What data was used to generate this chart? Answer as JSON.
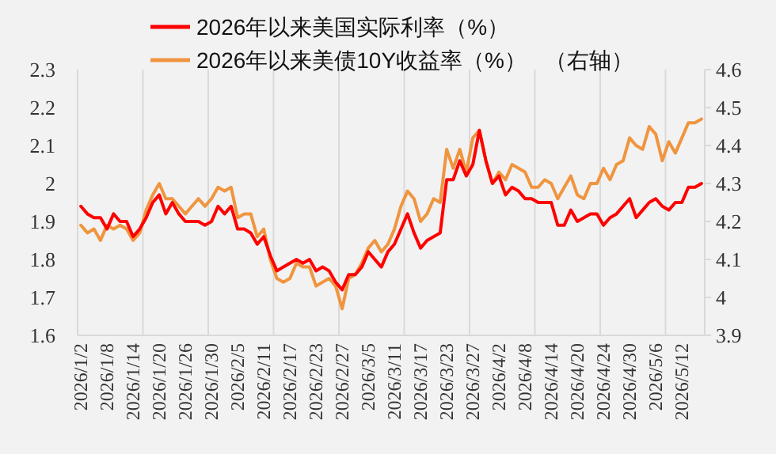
{
  "chart_data": {
    "type": "line",
    "categories": [
      "2026/1/2",
      null,
      null,
      null,
      "2026/1/8",
      null,
      null,
      null,
      "2026/1/14",
      null,
      null,
      null,
      "2026/1/20",
      null,
      null,
      null,
      "2026/1/26",
      null,
      null,
      null,
      "2026/1/30",
      null,
      null,
      null,
      "2026/2/5",
      null,
      null,
      null,
      "2026/2/11",
      null,
      null,
      null,
      "2026/2/17",
      null,
      null,
      null,
      "2026/2/23",
      null,
      null,
      null,
      "2026/2/27",
      null,
      null,
      null,
      "2026/3/5",
      null,
      null,
      null,
      "2026/3/11",
      null,
      null,
      null,
      "2026/3/17",
      null,
      null,
      null,
      "2026/3/23",
      null,
      null,
      null,
      "2026/3/27",
      null,
      null,
      null,
      "2026/4/2",
      null,
      null,
      null,
      "2026/4/8",
      null,
      null,
      null,
      "2026/4/14",
      null,
      null,
      null,
      "2026/4/20",
      null,
      null,
      null,
      "2026/4/24",
      null,
      null,
      null,
      "2026/4/30",
      null,
      null,
      null,
      "2026/5/6",
      null,
      null,
      null,
      "2026/5/12",
      null,
      null,
      null
    ],
    "series": [
      {
        "name": "2026年以来美国实际利率（%）",
        "color": "#ff0000",
        "values": [
          1.94,
          1.92,
          1.91,
          1.91,
          1.88,
          1.92,
          1.9,
          1.9,
          1.86,
          1.88,
          1.91,
          1.95,
          1.97,
          1.92,
          1.95,
          1.92,
          1.9,
          1.9,
          1.9,
          1.89,
          1.9,
          1.94,
          1.92,
          1.94,
          1.88,
          1.88,
          1.87,
          1.84,
          1.86,
          1.81,
          1.77,
          1.78,
          1.79,
          1.8,
          1.79,
          1.8,
          1.77,
          1.78,
          1.77,
          1.74,
          1.72,
          1.76,
          1.76,
          1.78,
          1.82,
          1.8,
          1.78,
          1.82,
          1.84,
          1.88,
          1.92,
          1.87,
          1.83,
          1.85,
          1.86,
          1.87,
          2.01,
          2.01,
          2.06,
          2.02,
          2.05,
          2.14,
          2.06,
          2.0,
          2.02,
          1.97,
          1.99,
          1.98,
          1.96,
          1.96,
          1.95,
          1.95,
          1.95,
          1.89,
          1.89,
          1.93,
          1.9,
          1.91,
          1.92,
          1.92,
          1.89,
          1.91,
          1.92,
          1.94,
          1.96,
          1.91,
          1.93,
          1.95,
          1.96,
          1.94,
          1.93,
          1.95,
          1.95,
          1.99,
          1.99,
          2.0
        ]
      },
      {
        "name": "2026年以来美债10Y收益率（%）   （右轴）",
        "color": "#f0953f",
        "axis": "y2",
        "values": [
          4.19,
          4.17,
          4.18,
          4.15,
          4.19,
          4.18,
          4.19,
          4.18,
          4.15,
          4.17,
          4.23,
          4.27,
          4.3,
          4.26,
          4.26,
          4.24,
          4.22,
          4.24,
          4.26,
          4.24,
          4.26,
          4.29,
          4.28,
          4.29,
          4.21,
          4.22,
          4.22,
          4.16,
          4.18,
          4.1,
          4.05,
          4.04,
          4.05,
          4.09,
          4.08,
          4.08,
          4.03,
          4.04,
          4.05,
          4.03,
          3.97,
          4.05,
          4.06,
          4.09,
          4.13,
          4.15,
          4.12,
          4.14,
          4.18,
          4.24,
          4.28,
          4.26,
          4.2,
          4.22,
          4.26,
          4.25,
          4.39,
          4.34,
          4.39,
          4.33,
          4.42,
          4.44,
          4.36,
          4.3,
          4.33,
          4.31,
          4.35,
          4.34,
          4.33,
          4.29,
          4.29,
          4.31,
          4.3,
          4.26,
          4.29,
          4.32,
          4.27,
          4.26,
          4.3,
          4.3,
          4.34,
          4.31,
          4.35,
          4.36,
          4.42,
          4.4,
          4.39,
          4.45,
          4.43,
          4.36,
          4.41,
          4.38,
          4.42,
          4.46,
          4.46,
          4.47
        ]
      }
    ],
    "ylim": [
      1.6,
      2.3
    ],
    "yticks": [
      {
        "value": 1.6,
        "label": "1.6"
      },
      {
        "value": 1.7,
        "label": "1.7"
      },
      {
        "value": 1.8,
        "label": "1.8"
      },
      {
        "value": 1.9,
        "label": "1.9"
      },
      {
        "value": 2.0,
        "label": "2"
      },
      {
        "value": 2.1,
        "label": "2.1"
      },
      {
        "value": 2.2,
        "label": "2.2"
      },
      {
        "value": 2.3,
        "label": "2.3"
      }
    ],
    "y2lim": [
      3.9,
      4.6
    ],
    "y2ticks": [
      {
        "value": 3.9,
        "label": "3.9"
      },
      {
        "value": 4.0,
        "label": "4"
      },
      {
        "value": 4.1,
        "label": "4.1"
      },
      {
        "value": 4.2,
        "label": "4.2"
      },
      {
        "value": 4.3,
        "label": "4.3"
      },
      {
        "value": 4.4,
        "label": "4.4"
      },
      {
        "value": 4.5,
        "label": "4.5"
      },
      {
        "value": 4.6,
        "label": "4.6"
      }
    ],
    "grid": "x",
    "legend": "top",
    "marker": "none",
    "line_style": "solid"
  }
}
